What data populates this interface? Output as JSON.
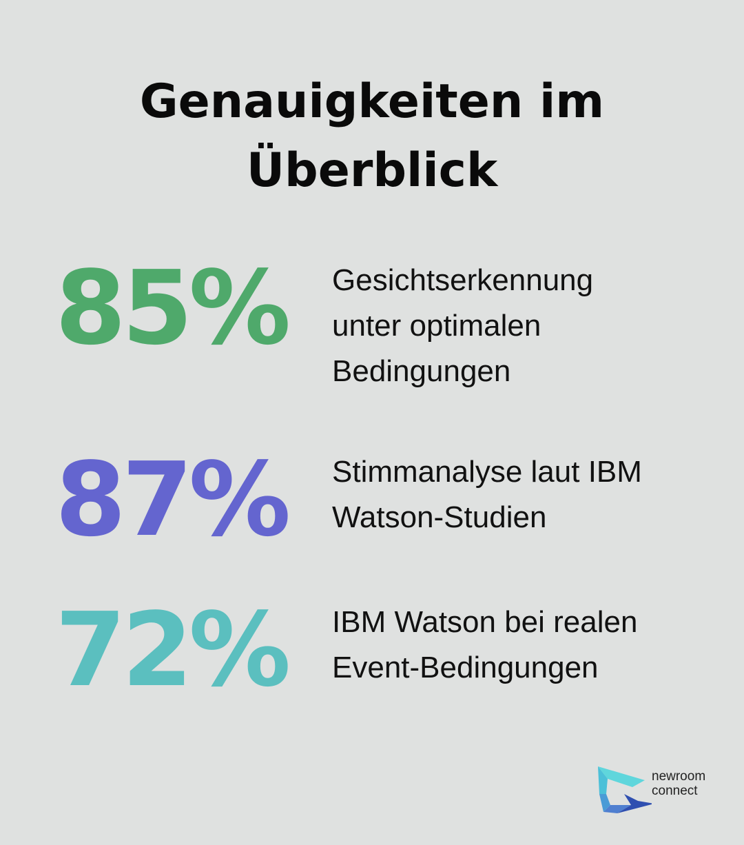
{
  "title_line1": "Genauigkeiten im",
  "title_line2": "Überblick",
  "stats": [
    {
      "value": "85%",
      "color": "#4fa96b",
      "lines": [
        "Gesichtserkennung",
        "unter optimalen",
        "Bedingungen"
      ]
    },
    {
      "value": "87%",
      "color": "#6465cf",
      "lines": [
        "Stimmanalyse laut IBM",
        "Watson-Studien"
      ]
    },
    {
      "value": "72%",
      "color": "#5bbfbf",
      "lines": [
        "IBM Watson bei realen",
        "Event-Bedingungen"
      ]
    }
  ],
  "logo": {
    "line1": "newroom",
    "line2": "connect"
  }
}
